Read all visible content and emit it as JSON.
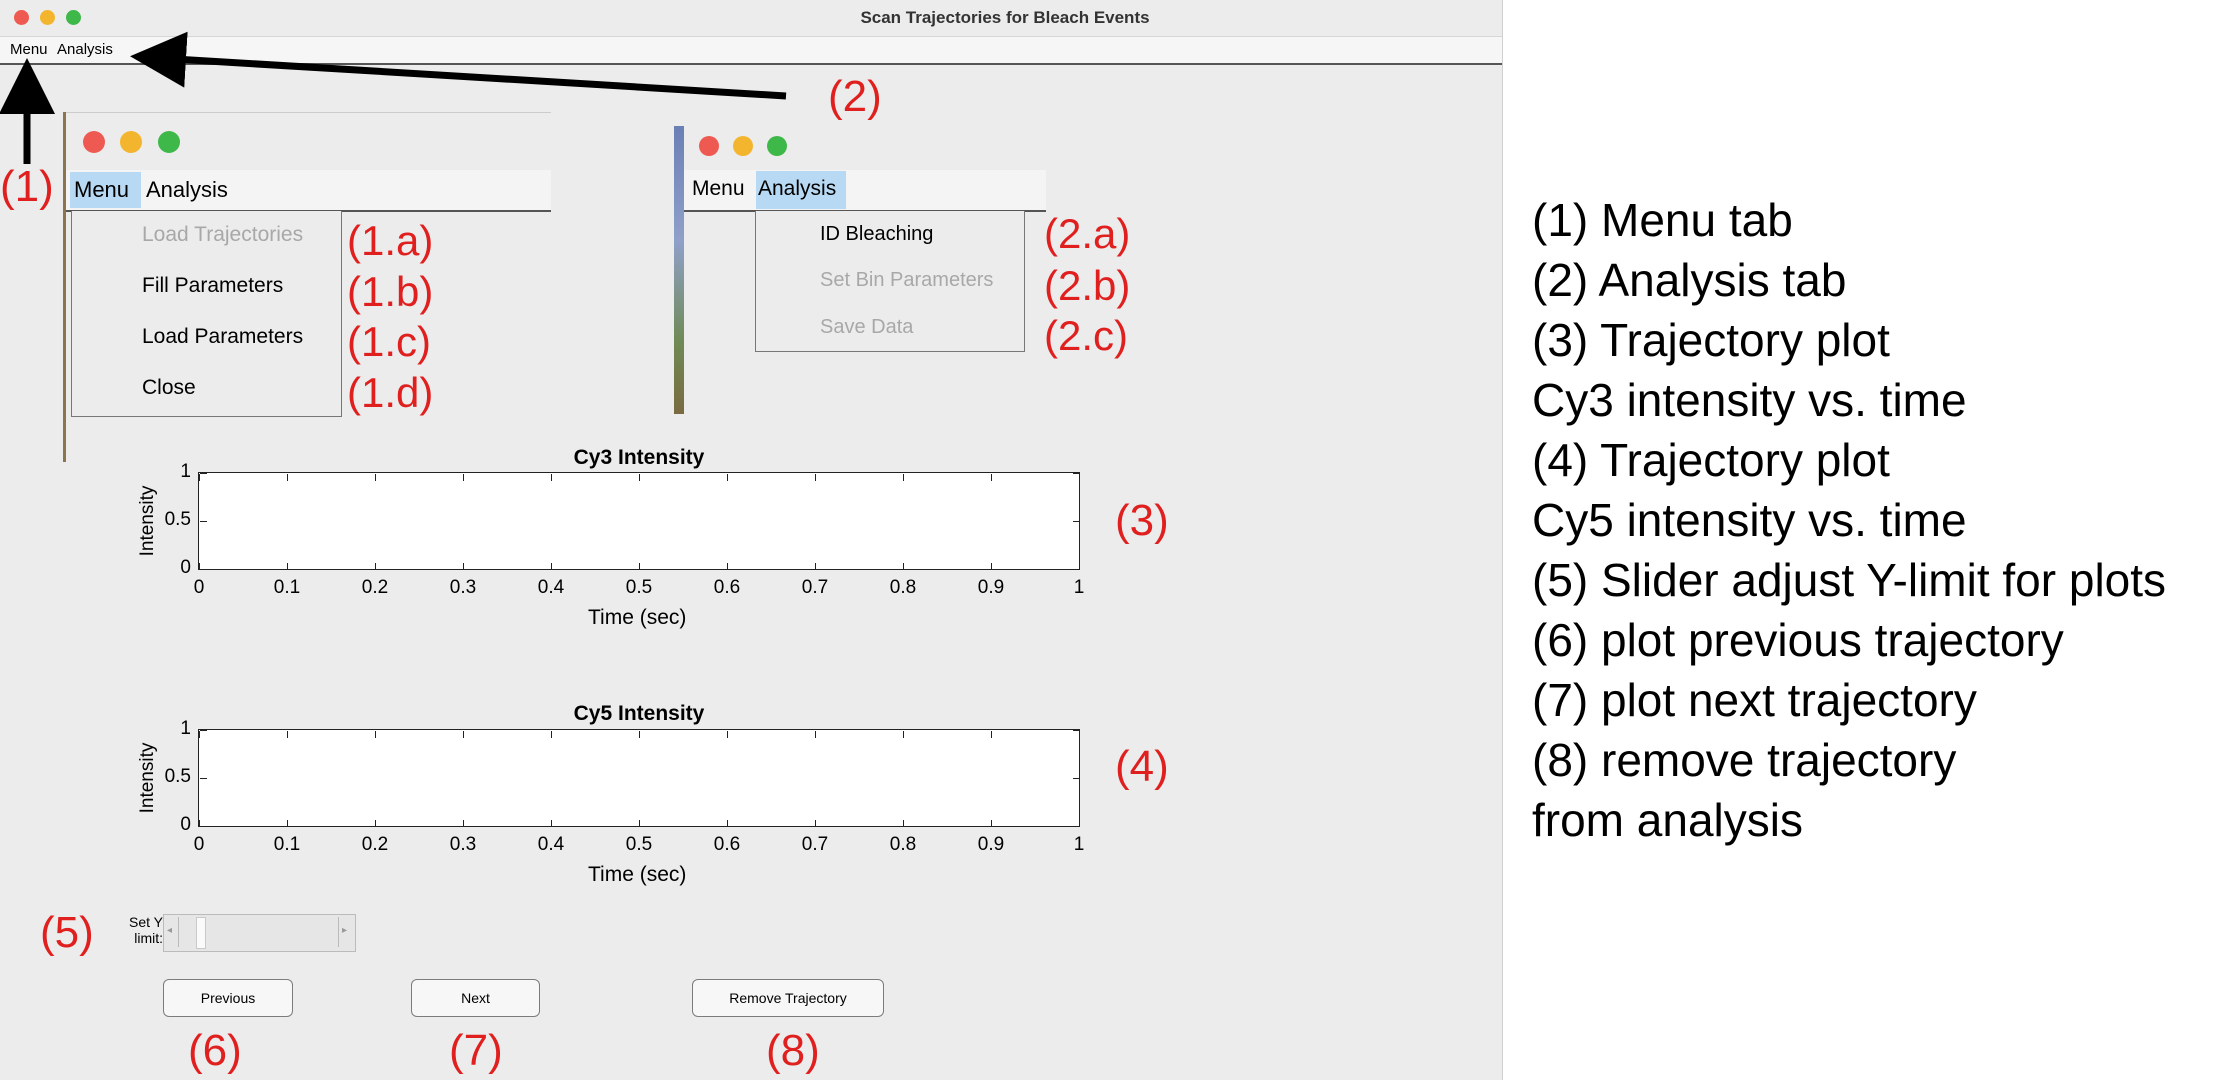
{
  "window": {
    "title": "Scan Trajectories for Bleach Events",
    "menu_label": "Menu",
    "analysis_label": "Analysis"
  },
  "menu_popup": {
    "menu_label": "Menu",
    "analysis_label": "Analysis",
    "items": [
      "Load Trajectories",
      "Fill Parameters",
      "Load Parameters",
      "Close"
    ],
    "item_tags": [
      "(1.a)",
      "(1.b)",
      "(1.c)",
      "(1.d)"
    ]
  },
  "analysis_popup": {
    "menu_label": "Menu",
    "analysis_label": "Analysis",
    "items": [
      "ID Bleaching",
      "Set Bin Parameters",
      "Save Data"
    ],
    "item_tags": [
      "(2.a)",
      "(2.b)",
      "(2.c)"
    ]
  },
  "callouts": {
    "c1": "(1)",
    "c2": "(2)",
    "c3": "(3)",
    "c4": "(4)",
    "c5": "(5)",
    "c6": "(6)",
    "c7": "(7)",
    "c8": "(8)"
  },
  "cy3_plot": {
    "title": "Cy3 Intensity",
    "ylabel": "Intensity",
    "xlabel": "Time (sec)",
    "yticks": [
      "0",
      "0.5",
      "1"
    ],
    "xticks": [
      "0",
      "0.1",
      "0.2",
      "0.3",
      "0.4",
      "0.5",
      "0.6",
      "0.7",
      "0.8",
      "0.9",
      "1"
    ]
  },
  "cy5_plot": {
    "title": "Cy5 Intensity",
    "ylabel": "Intensity",
    "xlabel": "Time (sec)",
    "yticks": [
      "0",
      "0.5",
      "1"
    ],
    "xticks": [
      "0",
      "0.1",
      "0.2",
      "0.3",
      "0.4",
      "0.5",
      "0.6",
      "0.7",
      "0.8",
      "0.9",
      "1"
    ]
  },
  "slider": {
    "label_line1": "Set Y",
    "label_line2": "limit:"
  },
  "buttons": {
    "previous": "Previous",
    "next": "Next",
    "remove": "Remove Trajectory"
  },
  "legend": [
    "(1) Menu tab",
    "(2) Analysis tab",
    "(3) Trajectory plot",
    "Cy3 intensity vs. time",
    "(4) Trajectory plot",
    "Cy5 intensity vs. time",
    "(5) Slider adjust Y-limit for plots",
    "(6) plot previous trajectory",
    "(7) plot next trajectory",
    "(8) remove trajectory",
    "from analysis"
  ],
  "colors": {
    "annotation": "#e0201f",
    "menu_highlight": "#b8d9f3",
    "close_light": "#ee5a52",
    "minimize_light": "#f4b52e",
    "zoom_light": "#3fb84a"
  }
}
